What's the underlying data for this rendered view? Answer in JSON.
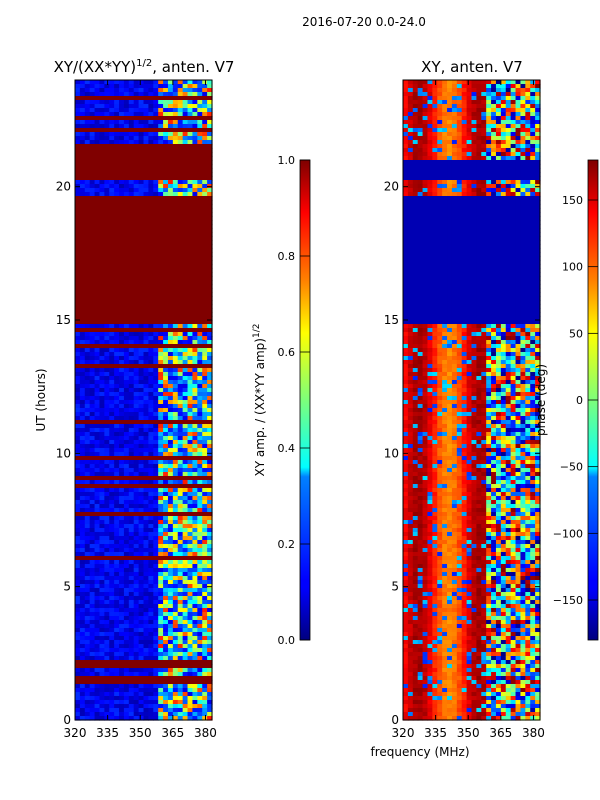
{
  "figure": {
    "suptitle": "2016-07-20 0.0-24.0",
    "shared_xlabel": "frequency (MHz)"
  },
  "colors": {
    "background": "#ffffff",
    "axis": "#000000",
    "rfi_band": "#7f0000",
    "low_value": "#00008f"
  },
  "chart_data": [
    {
      "type": "heatmap",
      "title_main": "XY/(XX*YY)",
      "title_exp": "1/2",
      "title_tail": ", anten. V7",
      "xlabel": "",
      "ylabel": "UT (hours)",
      "xlim": [
        320,
        383
      ],
      "ylim": [
        0,
        24
      ],
      "xticks": [
        320,
        335,
        350,
        365,
        380
      ],
      "yticks": [
        0,
        5,
        10,
        15,
        20
      ],
      "colormap": "jet",
      "colorbar": {
        "label_main": "XY amp. / (XX*YY amp)",
        "label_exp": "1/2",
        "range": [
          0.0,
          1.0
        ],
        "ticks": [
          0.0,
          0.2,
          0.4,
          0.6,
          0.8,
          1.0
        ],
        "tick_labels": [
          "0.0",
          "0.2",
          "0.4",
          "0.6",
          "0.8",
          "1.0"
        ]
      },
      "saturated_bands_hours": [
        [
          14.8,
          19.7
        ],
        [
          20.2,
          21.6
        ],
        [
          22.5,
          22.7
        ],
        [
          1.3,
          1.6
        ],
        [
          2.0,
          2.3
        ]
      ],
      "high_variance_freq_range_mhz": [
        359,
        383
      ]
    },
    {
      "type": "heatmap",
      "title_main": "XY, anten. V7",
      "xlabel": "",
      "ylabel": "",
      "xlim": [
        320,
        383
      ],
      "ylim": [
        0,
        24
      ],
      "xticks": [
        320,
        335,
        350,
        365,
        380
      ],
      "yticks": [
        0,
        5,
        10,
        15,
        20
      ],
      "colormap": "jet",
      "colorbar": {
        "label_main": "phase (deg)",
        "range": [
          -180,
          180
        ],
        "ticks": [
          -150,
          -100,
          -50,
          0,
          50,
          100,
          150
        ],
        "tick_labels": [
          "−150",
          "−100",
          "−50",
          "0",
          "50",
          "100",
          "150"
        ]
      },
      "uniform_bands_hours": [
        [
          14.8,
          19.7
        ],
        [
          20.2,
          21.0
        ]
      ],
      "high_variance_freq_range_mhz": [
        359,
        383
      ]
    }
  ]
}
